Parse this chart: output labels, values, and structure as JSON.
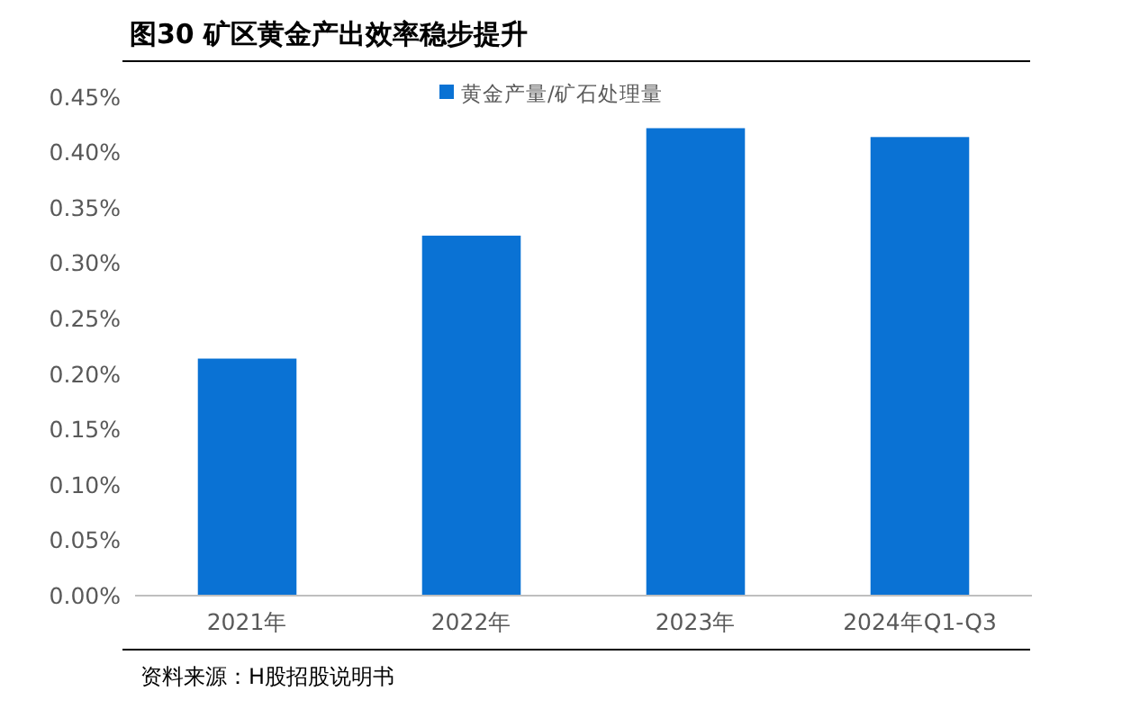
{
  "chart_data": {
    "type": "bar",
    "title": "图30 矿区黄金产出效率稳步提升",
    "categories": [
      "2021年",
      "2022年",
      "2023年",
      "2024年Q1-Q3"
    ],
    "series": [
      {
        "name": "黄金产量/矿石处理量",
        "color": "#0a72d4",
        "values": [
          0.214,
          0.325,
          0.422,
          0.414
        ]
      }
    ],
    "ylim": [
      0,
      0.45
    ],
    "yticks": [
      {
        "value": 0,
        "label": "0.00%"
      },
      {
        "value": 0.05,
        "label": "0.05%"
      },
      {
        "value": 0.1,
        "label": "0.10%"
      },
      {
        "value": 0.15,
        "label": "0.15%"
      },
      {
        "value": 0.2,
        "label": "0.20%"
      },
      {
        "value": 0.25,
        "label": "0.25%"
      },
      {
        "value": 0.3,
        "label": "0.30%"
      },
      {
        "value": 0.35,
        "label": "0.35%"
      },
      {
        "value": 0.4,
        "label": "0.40%"
      },
      {
        "value": 0.45,
        "label": "0.45%"
      }
    ],
    "grid": false,
    "legend": "top",
    "annotations": [
      "资料来源：H股招股说明书"
    ]
  }
}
